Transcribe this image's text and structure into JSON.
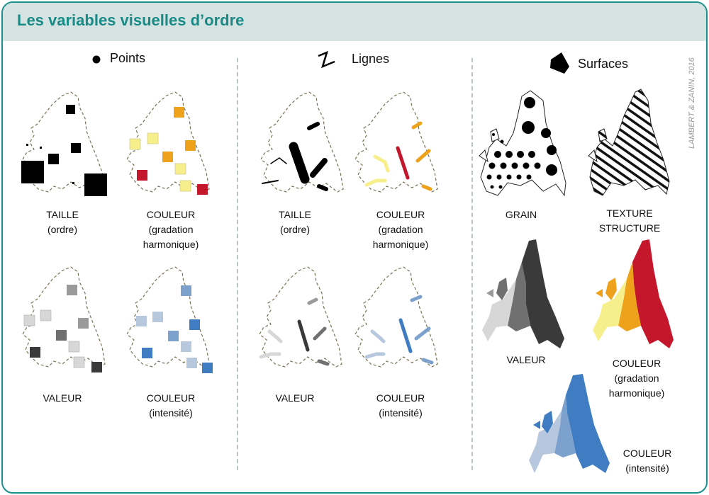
{
  "title": "Les variables visuelles d’ordre",
  "credit": "LAMBERT & ZANIN, 2016",
  "sections": {
    "points": "Points",
    "lignes": "Lignes",
    "surfaces": "Surfaces"
  },
  "labels": {
    "points_taille": [
      "TAILLE",
      "(ordre)"
    ],
    "points_couleur_grad": [
      "COULEUR",
      "(gradation",
      "harmonique)"
    ],
    "points_valeur": [
      "VALEUR"
    ],
    "points_couleur_int": [
      "COULEUR",
      "(intensité)"
    ],
    "lignes_taille": [
      "TAILLE",
      "(ordre)"
    ],
    "lignes_couleur_grad": [
      "COULEUR",
      "(gradation",
      "harmonique)"
    ],
    "lignes_valeur": [
      "VALEUR"
    ],
    "lignes_couleur_int": [
      "COULEUR",
      "(intensité)"
    ],
    "surf_grain": [
      "GRAIN"
    ],
    "surf_texture": [
      "TEXTURE",
      "STRUCTURE"
    ],
    "surf_valeur": [
      "VALEUR"
    ],
    "surf_couleur_grad": [
      "COULEUR",
      "(gradation",
      "harmonique)"
    ],
    "surf_couleur_int": [
      "COULEUR",
      "(intensité)"
    ]
  },
  "colors": {
    "accent": "#1a8a87",
    "header_bg": "#d5e3e2",
    "grad": [
      "#f7ef8c",
      "#eea21b",
      "#c4172c"
    ],
    "int": [
      "#b7c7dd",
      "#7da1cd",
      "#3f7cc1"
    ],
    "val": [
      "#d7d7d7",
      "#9a9a9a",
      "#707070",
      "#3a3a3a"
    ]
  }
}
